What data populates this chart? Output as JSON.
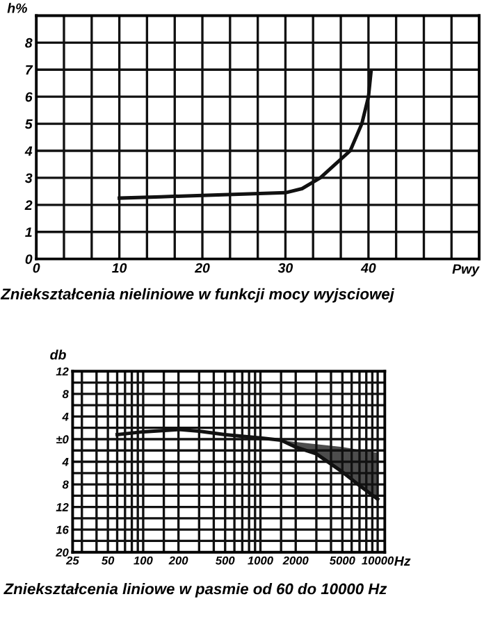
{
  "chart_data": [
    {
      "type": "line",
      "title": "Zniekształcenia nieliniowe w funkcji mocy wyjsciowej",
      "xlabel": "Pwy",
      "ylabel": "h%",
      "series": [
        {
          "color": "#111111",
          "x": [
            10,
            15,
            20,
            25,
            30,
            32,
            34.2,
            36,
            37.8,
            39.2,
            40,
            40.3
          ],
          "values": [
            2.25,
            2.3,
            2.35,
            2.4,
            2.45,
            2.6,
            3,
            3.5,
            4,
            5,
            6,
            6.9
          ]
        }
      ],
      "xlim": [
        0,
        53.33
      ],
      "ylim": [
        0,
        9
      ],
      "xticks": [
        0,
        {
          "value": 3.33,
          "label": null
        },
        {
          "value": 6.67,
          "label": null
        },
        10,
        {
          "value": 13.33,
          "label": null
        },
        {
          "value": 16.67,
          "label": null
        },
        20,
        {
          "value": 23.33,
          "label": null
        },
        {
          "value": 26.67,
          "label": null
        },
        30,
        {
          "value": 33.33,
          "label": null
        },
        {
          "value": 36.67,
          "label": null
        },
        40,
        {
          "value": 43.33,
          "label": null
        },
        {
          "value": 46.67,
          "label": null
        },
        {
          "value": 50,
          "label": null
        }
      ],
      "yticks": [
        0,
        1,
        2,
        3,
        4,
        5,
        6,
        7,
        8
      ],
      "grid": true,
      "line_style": "solid",
      "marker": "none"
    },
    {
      "type": "line",
      "title": "Zniekształcenia liniowe w pasmie od 60 do 10000 Hz",
      "xlabel": "Hz",
      "ylabel": "db",
      "log": "x",
      "series": [
        {
          "color": "#111111",
          "x": [
            60,
            100,
            200,
            300,
            500,
            1000,
            1500,
            2000,
            3000,
            5000,
            7000,
            10000
          ],
          "values": [
            0.8,
            1.3,
            1.7,
            1.4,
            0.8,
            0.2,
            -0.2,
            -1.4,
            -2.6,
            -5.8,
            -8.2,
            -10.6
          ],
          "lower": [
            null,
            null,
            null,
            null,
            null,
            null,
            -0.2,
            -1.4,
            -2.6,
            -5.8,
            -8.2,
            -10.6
          ],
          "upper": [
            null,
            null,
            null,
            null,
            null,
            null,
            -0.2,
            -0.5,
            -0.9,
            -1.4,
            -1.9,
            -2.4
          ]
        }
      ],
      "xlim": [
        25,
        11500
      ],
      "ylim": [
        -20,
        12
      ],
      "xticks": [
        25,
        {
          "value": 30,
          "label": null
        },
        {
          "value": 40,
          "label": null
        },
        50,
        {
          "value": 60,
          "label": null
        },
        {
          "value": 70,
          "label": null
        },
        {
          "value": 80,
          "label": null
        },
        {
          "value": 90,
          "label": null
        },
        100,
        {
          "value": 150,
          "label": null
        },
        200,
        {
          "value": 300,
          "label": null
        },
        {
          "value": 400,
          "label": null
        },
        500,
        {
          "value": 600,
          "label": null
        },
        {
          "value": 700,
          "label": null
        },
        {
          "value": 800,
          "label": null
        },
        {
          "value": 900,
          "label": null
        },
        1000,
        {
          "value": 1500,
          "label": null
        },
        2000,
        {
          "value": 3000,
          "label": null
        },
        {
          "value": 4000,
          "label": null
        },
        5000,
        {
          "value": 6000,
          "label": null
        },
        {
          "value": 7000,
          "label": null
        },
        {
          "value": 8000,
          "label": null
        },
        {
          "value": 9000,
          "label": null
        },
        10000
      ],
      "yticks": [
        {
          "value": -20,
          "label": "20"
        },
        {
          "value": -18,
          "label": null
        },
        {
          "value": -16,
          "label": "16"
        },
        {
          "value": -14,
          "label": null
        },
        {
          "value": -12,
          "label": "12"
        },
        {
          "value": -10,
          "label": null
        },
        {
          "value": -8,
          "label": "8"
        },
        {
          "value": -6,
          "label": null
        },
        {
          "value": -4,
          "label": "4"
        },
        {
          "value": -2,
          "label": null
        },
        {
          "value": 0,
          "label": "±0"
        },
        {
          "value": 2,
          "label": null
        },
        {
          "value": 4,
          "label": "4"
        },
        {
          "value": 6,
          "label": null
        },
        {
          "value": 8,
          "label": "8"
        },
        {
          "value": 10,
          "label": null
        },
        {
          "value": 12,
          "label": "12"
        }
      ],
      "grid": true,
      "line_style": "solid",
      "marker": "none"
    }
  ]
}
